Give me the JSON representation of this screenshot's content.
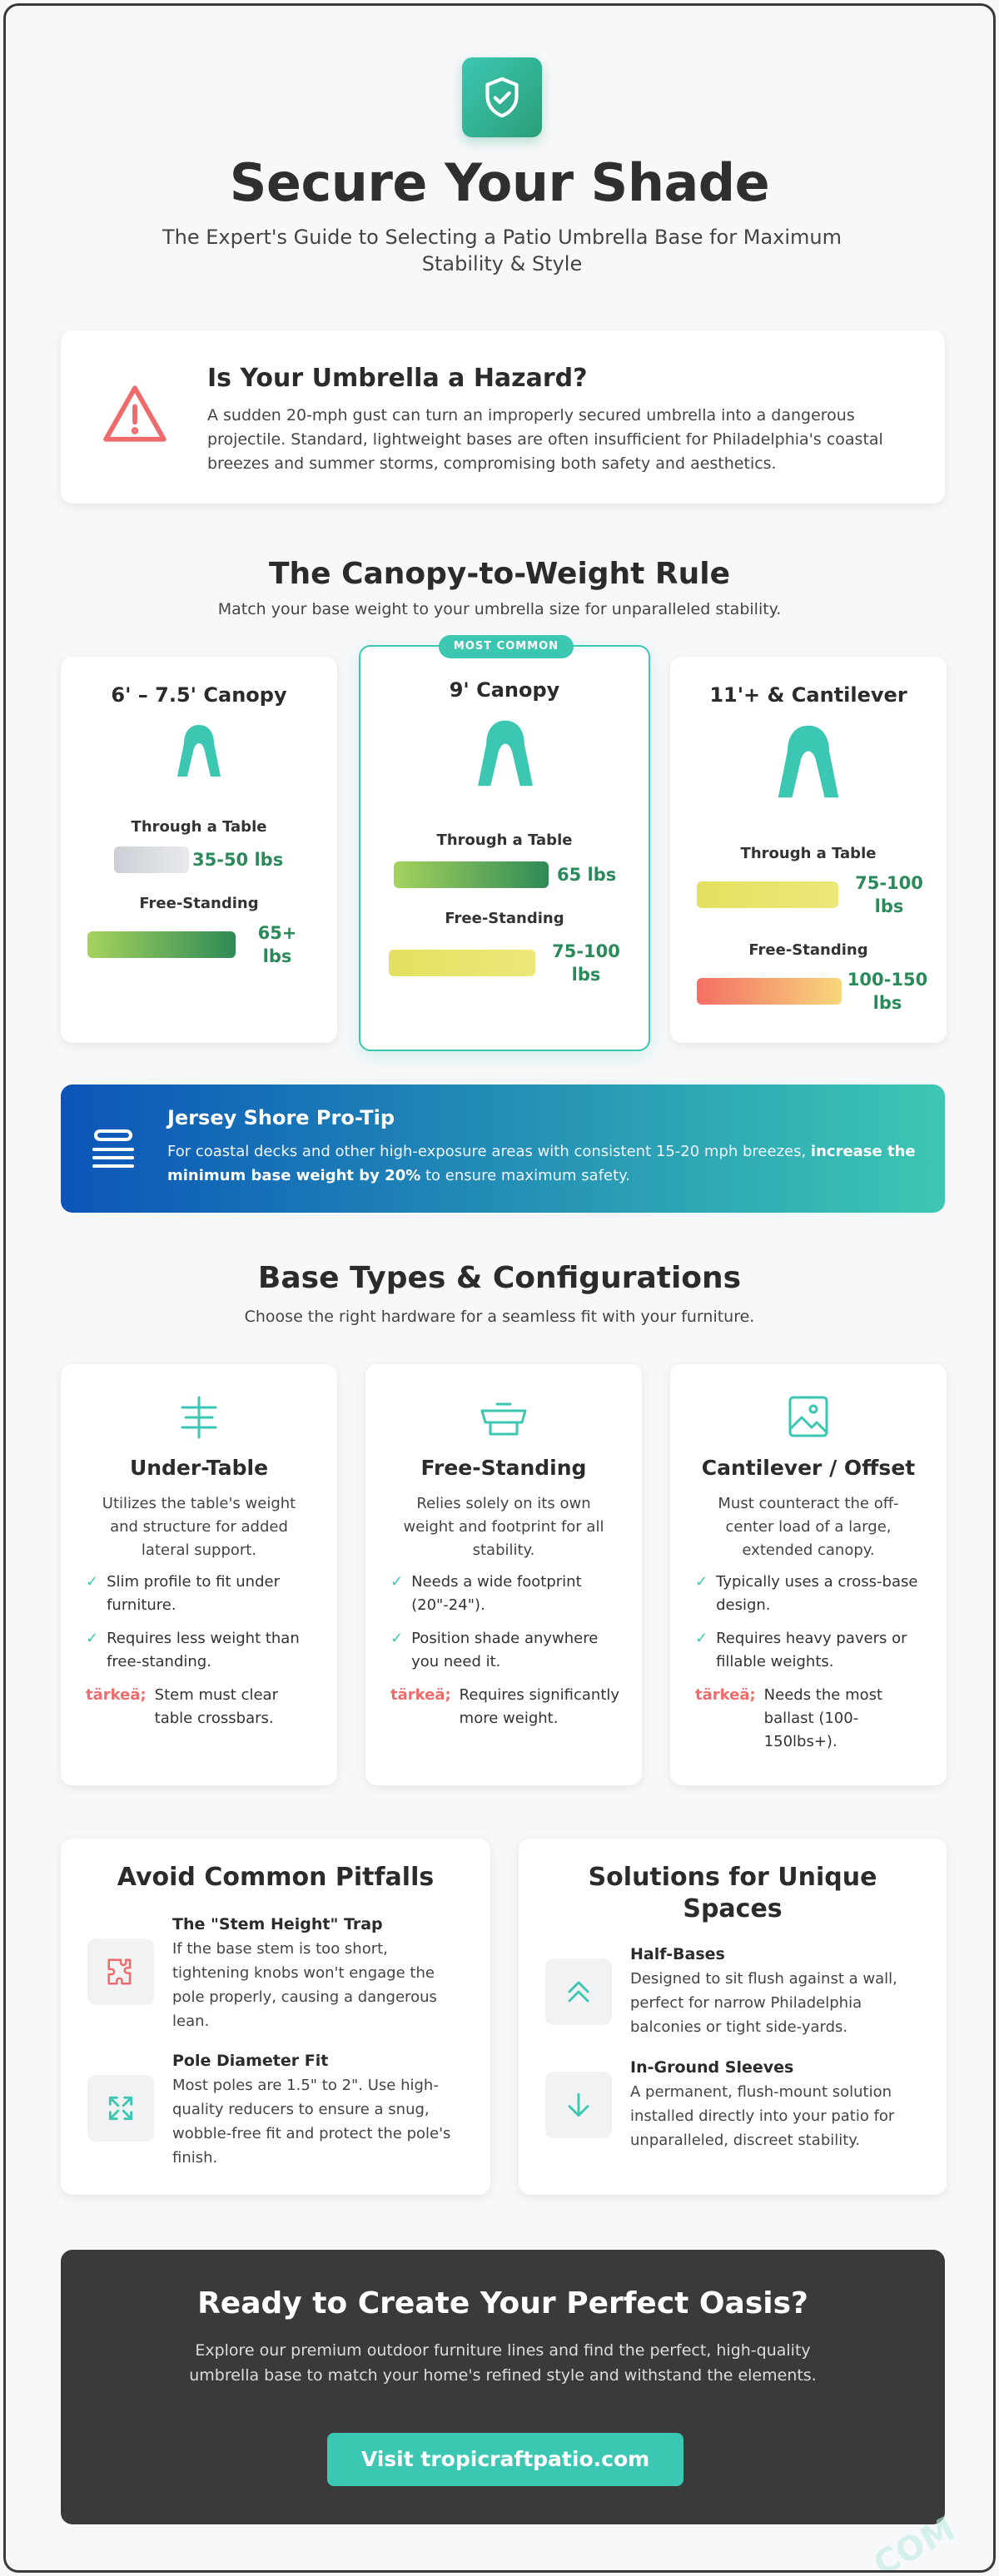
{
  "header": {
    "title": "Secure Your Shade",
    "subtitle": "The Expert's Guide to Selecting a Patio Umbrella Base for Maximum Stability & Style",
    "logo_icon": "shield-check-icon"
  },
  "hazard": {
    "icon": "warning-triangle-icon",
    "title": "Is Your Umbrella a Hazard?",
    "text": "A sudden 20-mph gust can turn an improperly secured umbrella into a dangerous projectile. Standard, lightweight bases are often insufficient for Philadelphia's coastal breezes and summer storms, compromising both safety and aesthetics."
  },
  "weight_rule": {
    "title": "The Canopy-to-Weight Rule",
    "subtitle": "Match your base weight to your umbrella size for unparalleled stability.",
    "cards": [
      {
        "title": "6' – 7.5' Canopy",
        "table_label": "Through a Table",
        "table_value": "35-50 lbs",
        "free_label": "Free-Standing",
        "free_value": "65+ lbs"
      },
      {
        "title": "9' Canopy",
        "badge": "MOST COMMON",
        "table_label": "Through a Table",
        "table_value": "65 lbs",
        "free_label": "Free-Standing",
        "free_value": "75-100 lbs"
      },
      {
        "title": "11'+ & Cantilever",
        "table_label": "Through a Table",
        "table_value": "75-100 lbs",
        "free_label": "Free-Standing",
        "free_value": "100-150 lbs"
      }
    ],
    "colors": {
      "accent": "#3cc7b3",
      "value_text": "#2a8a5a"
    }
  },
  "protip": {
    "icon": "stack-icon",
    "title": "Jersey Shore Pro-Tip",
    "text_before": "For coastal decks and other high-exposure areas with consistent 15-20 mph breezes, ",
    "text_bold": "increase the minimum base weight by 20%",
    "text_after": " to ensure maximum safety."
  },
  "base_types": {
    "title": "Base Types & Configurations",
    "subtitle": "Choose the right hardware for a seamless fit with your furniture.",
    "cards": [
      {
        "icon": "under-table-icon",
        "title": "Under-Table",
        "desc": "Utilizes the table's weight and structure for added lateral support.",
        "pro1": "Slim profile to fit under furniture.",
        "pro2": "Requires less weight than free-standing.",
        "con_mark": "tärkeä;",
        "con": "Stem must clear table crossbars."
      },
      {
        "icon": "free-standing-icon",
        "title": "Free-Standing",
        "desc": "Relies solely on its own weight and footprint for all stability.",
        "pro1": "Needs a wide footprint (20\"-24\").",
        "pro2": "Position shade anywhere you need it.",
        "con_mark": "tärkeä;",
        "con": "Requires significantly more weight."
      },
      {
        "icon": "image-icon",
        "title": "Cantilever / Offset",
        "desc": "Must counteract the off-center load of a large, extended canopy.",
        "pro1": "Typically uses a cross-base design.",
        "pro2": "Requires heavy pavers or fillable weights.",
        "con_mark": "tärkeä;",
        "con": "Needs the most ballast (100-150lbs+)."
      }
    ],
    "check_mark": "✓"
  },
  "pitfalls": {
    "title": "Avoid Common Pitfalls",
    "items": [
      {
        "icon": "puzzle-icon",
        "title": "The \"Stem Height\" Trap",
        "text": "If the base stem is too short, tightening knobs won't engage the pole properly, causing a dangerous lean."
      },
      {
        "icon": "expand-arrows-icon",
        "title": "Pole Diameter Fit",
        "text": "Most poles are 1.5\" to 2\". Use high-quality reducers to ensure a snug, wobble-free fit and protect the pole's finish."
      }
    ]
  },
  "solutions": {
    "title": "Solutions for Unique Spaces",
    "items": [
      {
        "icon": "double-chevron-up-icon",
        "title": "Half-Bases",
        "text": "Designed to sit flush against a wall, perfect for narrow Philadelphia balconies or tight side-yards."
      },
      {
        "icon": "arrow-down-icon",
        "title": "In-Ground Sleeves",
        "text": "A permanent, flush-mount solution installed directly into your patio for unparalleled, discreet stability."
      }
    ]
  },
  "cta": {
    "title": "Ready to Create Your Perfect Oasis?",
    "text": "Explore our premium outdoor furniture lines and find the perfect, high-quality umbrella base to match your home's refined style and withstand the elements.",
    "button": "Visit tropicraftpatio.com"
  },
  "watermark": "COM"
}
